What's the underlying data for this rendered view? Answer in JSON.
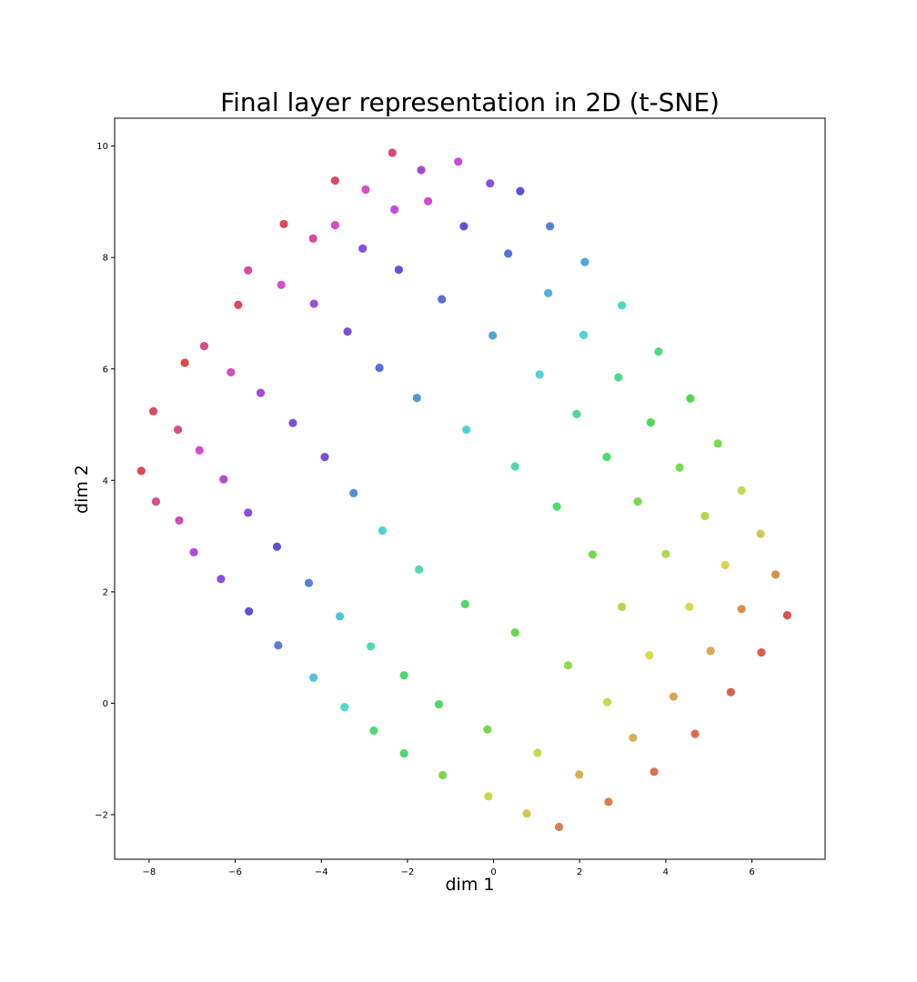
{
  "chart_data": {
    "type": "scatter",
    "title": "Final layer representation in 2D (t-SNE)",
    "xlabel": "dim 1",
    "ylabel": "dim 2",
    "xlim": [
      -8.8,
      7.7
    ],
    "ylim": [
      -2.8,
      10.5
    ],
    "xticks": [
      -8,
      -6,
      -4,
      -2,
      0,
      2,
      4,
      6
    ],
    "yticks": [
      -2,
      0,
      2,
      4,
      6,
      8,
      10
    ],
    "grid": false,
    "colormap": "hls rainbow (red → magenta → blue → cyan → green → yellow → orange → red)",
    "points": [
      {
        "x": -2.35,
        "y": 9.88,
        "color": "#d94a72"
      },
      {
        "x": -1.68,
        "y": 9.57,
        "color": "#a04ad8"
      },
      {
        "x": -0.82,
        "y": 9.72,
        "color": "#c04cd9"
      },
      {
        "x": -0.08,
        "y": 9.33,
        "color": "#8a4fd8"
      },
      {
        "x": 0.62,
        "y": 9.19,
        "color": "#5a52d8"
      },
      {
        "x": -3.68,
        "y": 9.38,
        "color": "#d94a64"
      },
      {
        "x": -2.97,
        "y": 9.22,
        "color": "#d44ccc"
      },
      {
        "x": -1.52,
        "y": 9.01,
        "color": "#d44ccc"
      },
      {
        "x": -2.3,
        "y": 8.86,
        "color": "#c04cd9"
      },
      {
        "x": -0.69,
        "y": 8.56,
        "color": "#5a52d8"
      },
      {
        "x": 1.31,
        "y": 8.56,
        "color": "#5a7fd8"
      },
      {
        "x": -4.87,
        "y": 8.6,
        "color": "#d94a5e"
      },
      {
        "x": -3.68,
        "y": 8.58,
        "color": "#d74cb7"
      },
      {
        "x": -4.19,
        "y": 8.34,
        "color": "#d74c9a"
      },
      {
        "x": -3.04,
        "y": 8.16,
        "color": "#8a4fd8"
      },
      {
        "x": 0.34,
        "y": 8.07,
        "color": "#5a72d8"
      },
      {
        "x": 2.12,
        "y": 7.92,
        "color": "#4fa6d8"
      },
      {
        "x": -5.7,
        "y": 7.77,
        "color": "#d74c9a"
      },
      {
        "x": -2.2,
        "y": 7.78,
        "color": "#6a50d8"
      },
      {
        "x": -4.93,
        "y": 7.51,
        "color": "#d44ccc"
      },
      {
        "x": 1.27,
        "y": 7.36,
        "color": "#4fb0d8"
      },
      {
        "x": -1.2,
        "y": 7.25,
        "color": "#5a6fd8"
      },
      {
        "x": -4.17,
        "y": 7.17,
        "color": "#a04ad8"
      },
      {
        "x": 2.98,
        "y": 7.14,
        "color": "#4fd8c6"
      },
      {
        "x": -5.93,
        "y": 7.15,
        "color": "#d94a5a"
      },
      {
        "x": -3.39,
        "y": 6.67,
        "color": "#7a4fd8"
      },
      {
        "x": -0.02,
        "y": 6.6,
        "color": "#4fa6d8"
      },
      {
        "x": 2.09,
        "y": 6.61,
        "color": "#4fd2d8"
      },
      {
        "x": -6.72,
        "y": 6.41,
        "color": "#d74c8a"
      },
      {
        "x": 3.83,
        "y": 6.31,
        "color": "#4fd88a"
      },
      {
        "x": -7.17,
        "y": 6.11,
        "color": "#d94a4e"
      },
      {
        "x": -2.65,
        "y": 6.02,
        "color": "#5a6fd8"
      },
      {
        "x": -6.1,
        "y": 5.94,
        "color": "#d44cc6"
      },
      {
        "x": 1.07,
        "y": 5.9,
        "color": "#4fd2d8"
      },
      {
        "x": 2.9,
        "y": 5.85,
        "color": "#4fd890"
      },
      {
        "x": -5.41,
        "y": 5.57,
        "color": "#a04ad8"
      },
      {
        "x": -1.78,
        "y": 5.48,
        "color": "#4f9ad8"
      },
      {
        "x": 4.57,
        "y": 5.47,
        "color": "#4fd84f"
      },
      {
        "x": -7.9,
        "y": 5.24,
        "color": "#d94a64"
      },
      {
        "x": 1.93,
        "y": 5.19,
        "color": "#4fd890"
      },
      {
        "x": 3.65,
        "y": 5.04,
        "color": "#4fd85a"
      },
      {
        "x": -4.66,
        "y": 5.03,
        "color": "#7a4fd8"
      },
      {
        "x": -7.33,
        "y": 4.91,
        "color": "#d74c8a"
      },
      {
        "x": -0.63,
        "y": 4.91,
        "color": "#4fd2d8"
      },
      {
        "x": 5.21,
        "y": 4.66,
        "color": "#7ad84f"
      },
      {
        "x": -6.83,
        "y": 4.54,
        "color": "#d44ccc"
      },
      {
        "x": -3.92,
        "y": 4.42,
        "color": "#7a4fd8"
      },
      {
        "x": 2.63,
        "y": 4.42,
        "color": "#4fd86a"
      },
      {
        "x": 0.5,
        "y": 4.25,
        "color": "#4fd8b0"
      },
      {
        "x": 4.32,
        "y": 4.23,
        "color": "#7ad84f"
      },
      {
        "x": -8.18,
        "y": 4.17,
        "color": "#d94a52"
      },
      {
        "x": -6.27,
        "y": 4.02,
        "color": "#b04ad8"
      },
      {
        "x": 5.76,
        "y": 3.82,
        "color": "#c6d84f"
      },
      {
        "x": -3.25,
        "y": 3.77,
        "color": "#4f90d8"
      },
      {
        "x": -7.84,
        "y": 3.62,
        "color": "#d74c8a"
      },
      {
        "x": 3.35,
        "y": 3.62,
        "color": "#7ad84f"
      },
      {
        "x": 1.47,
        "y": 3.53,
        "color": "#4fd86a"
      },
      {
        "x": -5.7,
        "y": 3.42,
        "color": "#8a4fd8"
      },
      {
        "x": 4.91,
        "y": 3.36,
        "color": "#b0d84f"
      },
      {
        "x": -7.3,
        "y": 3.28,
        "color": "#d44cbc"
      },
      {
        "x": -2.58,
        "y": 3.1,
        "color": "#4fd2d8"
      },
      {
        "x": 6.2,
        "y": 3.04,
        "color": "#d8c64f"
      },
      {
        "x": -5.03,
        "y": 2.81,
        "color": "#5a52d8"
      },
      {
        "x": -6.96,
        "y": 2.71,
        "color": "#b04ad8"
      },
      {
        "x": 4.0,
        "y": 2.68,
        "color": "#b0d84f"
      },
      {
        "x": 2.3,
        "y": 2.67,
        "color": "#7ad84f"
      },
      {
        "x": 5.38,
        "y": 2.48,
        "color": "#d8d84f"
      },
      {
        "x": -1.73,
        "y": 2.4,
        "color": "#4fd8b0"
      },
      {
        "x": 6.55,
        "y": 2.31,
        "color": "#d8904f"
      },
      {
        "x": -6.33,
        "y": 2.23,
        "color": "#8a4fd8"
      },
      {
        "x": -4.29,
        "y": 2.16,
        "color": "#5a7fd8"
      },
      {
        "x": -0.66,
        "y": 1.78,
        "color": "#4fd86a"
      },
      {
        "x": 2.98,
        "y": 1.73,
        "color": "#b0d84f"
      },
      {
        "x": 4.55,
        "y": 1.73,
        "color": "#d8d84f"
      },
      {
        "x": 5.76,
        "y": 1.69,
        "color": "#d8904f"
      },
      {
        "x": -5.68,
        "y": 1.65,
        "color": "#5a52d8"
      },
      {
        "x": 6.82,
        "y": 1.58,
        "color": "#d8544f"
      },
      {
        "x": -3.57,
        "y": 1.56,
        "color": "#4fc6d8"
      },
      {
        "x": 0.5,
        "y": 1.27,
        "color": "#6ad84f"
      },
      {
        "x": -5.0,
        "y": 1.04,
        "color": "#5a7fd8"
      },
      {
        "x": -2.85,
        "y": 1.02,
        "color": "#4fd8b0"
      },
      {
        "x": 5.04,
        "y": 0.94,
        "color": "#d8a64f"
      },
      {
        "x": 6.22,
        "y": 0.91,
        "color": "#d8604f"
      },
      {
        "x": 3.62,
        "y": 0.86,
        "color": "#d8d84f"
      },
      {
        "x": 1.73,
        "y": 0.68,
        "color": "#9ad84f"
      },
      {
        "x": -2.08,
        "y": 0.5,
        "color": "#4fd86a"
      },
      {
        "x": -4.18,
        "y": 0.46,
        "color": "#4fc6d8"
      },
      {
        "x": 5.51,
        "y": 0.2,
        "color": "#d8604f"
      },
      {
        "x": 4.18,
        "y": 0.12,
        "color": "#d8a64f"
      },
      {
        "x": 2.64,
        "y": 0.02,
        "color": "#c6d84f"
      },
      {
        "x": -1.27,
        "y": -0.02,
        "color": "#4fd86a"
      },
      {
        "x": -3.46,
        "y": -0.07,
        "color": "#4fd8d2"
      },
      {
        "x": -0.14,
        "y": -0.47,
        "color": "#7ad84f"
      },
      {
        "x": -2.78,
        "y": -0.49,
        "color": "#4fd880"
      },
      {
        "x": 4.68,
        "y": -0.55,
        "color": "#d8704f"
      },
      {
        "x": 3.24,
        "y": -0.62,
        "color": "#d8b04f"
      },
      {
        "x": 1.02,
        "y": -0.89,
        "color": "#c6d84f"
      },
      {
        "x": -2.08,
        "y": -0.9,
        "color": "#4fd86a"
      },
      {
        "x": 3.73,
        "y": -1.23,
        "color": "#d8704f"
      },
      {
        "x": -1.18,
        "y": -1.29,
        "color": "#7ad84f"
      },
      {
        "x": 1.99,
        "y": -1.28,
        "color": "#d8b04f"
      },
      {
        "x": -0.12,
        "y": -1.67,
        "color": "#c6d84f"
      },
      {
        "x": 2.67,
        "y": -1.77,
        "color": "#d8804f"
      },
      {
        "x": 0.77,
        "y": -1.98,
        "color": "#d8c64f"
      },
      {
        "x": 1.52,
        "y": -2.22,
        "color": "#d8804f"
      }
    ]
  }
}
